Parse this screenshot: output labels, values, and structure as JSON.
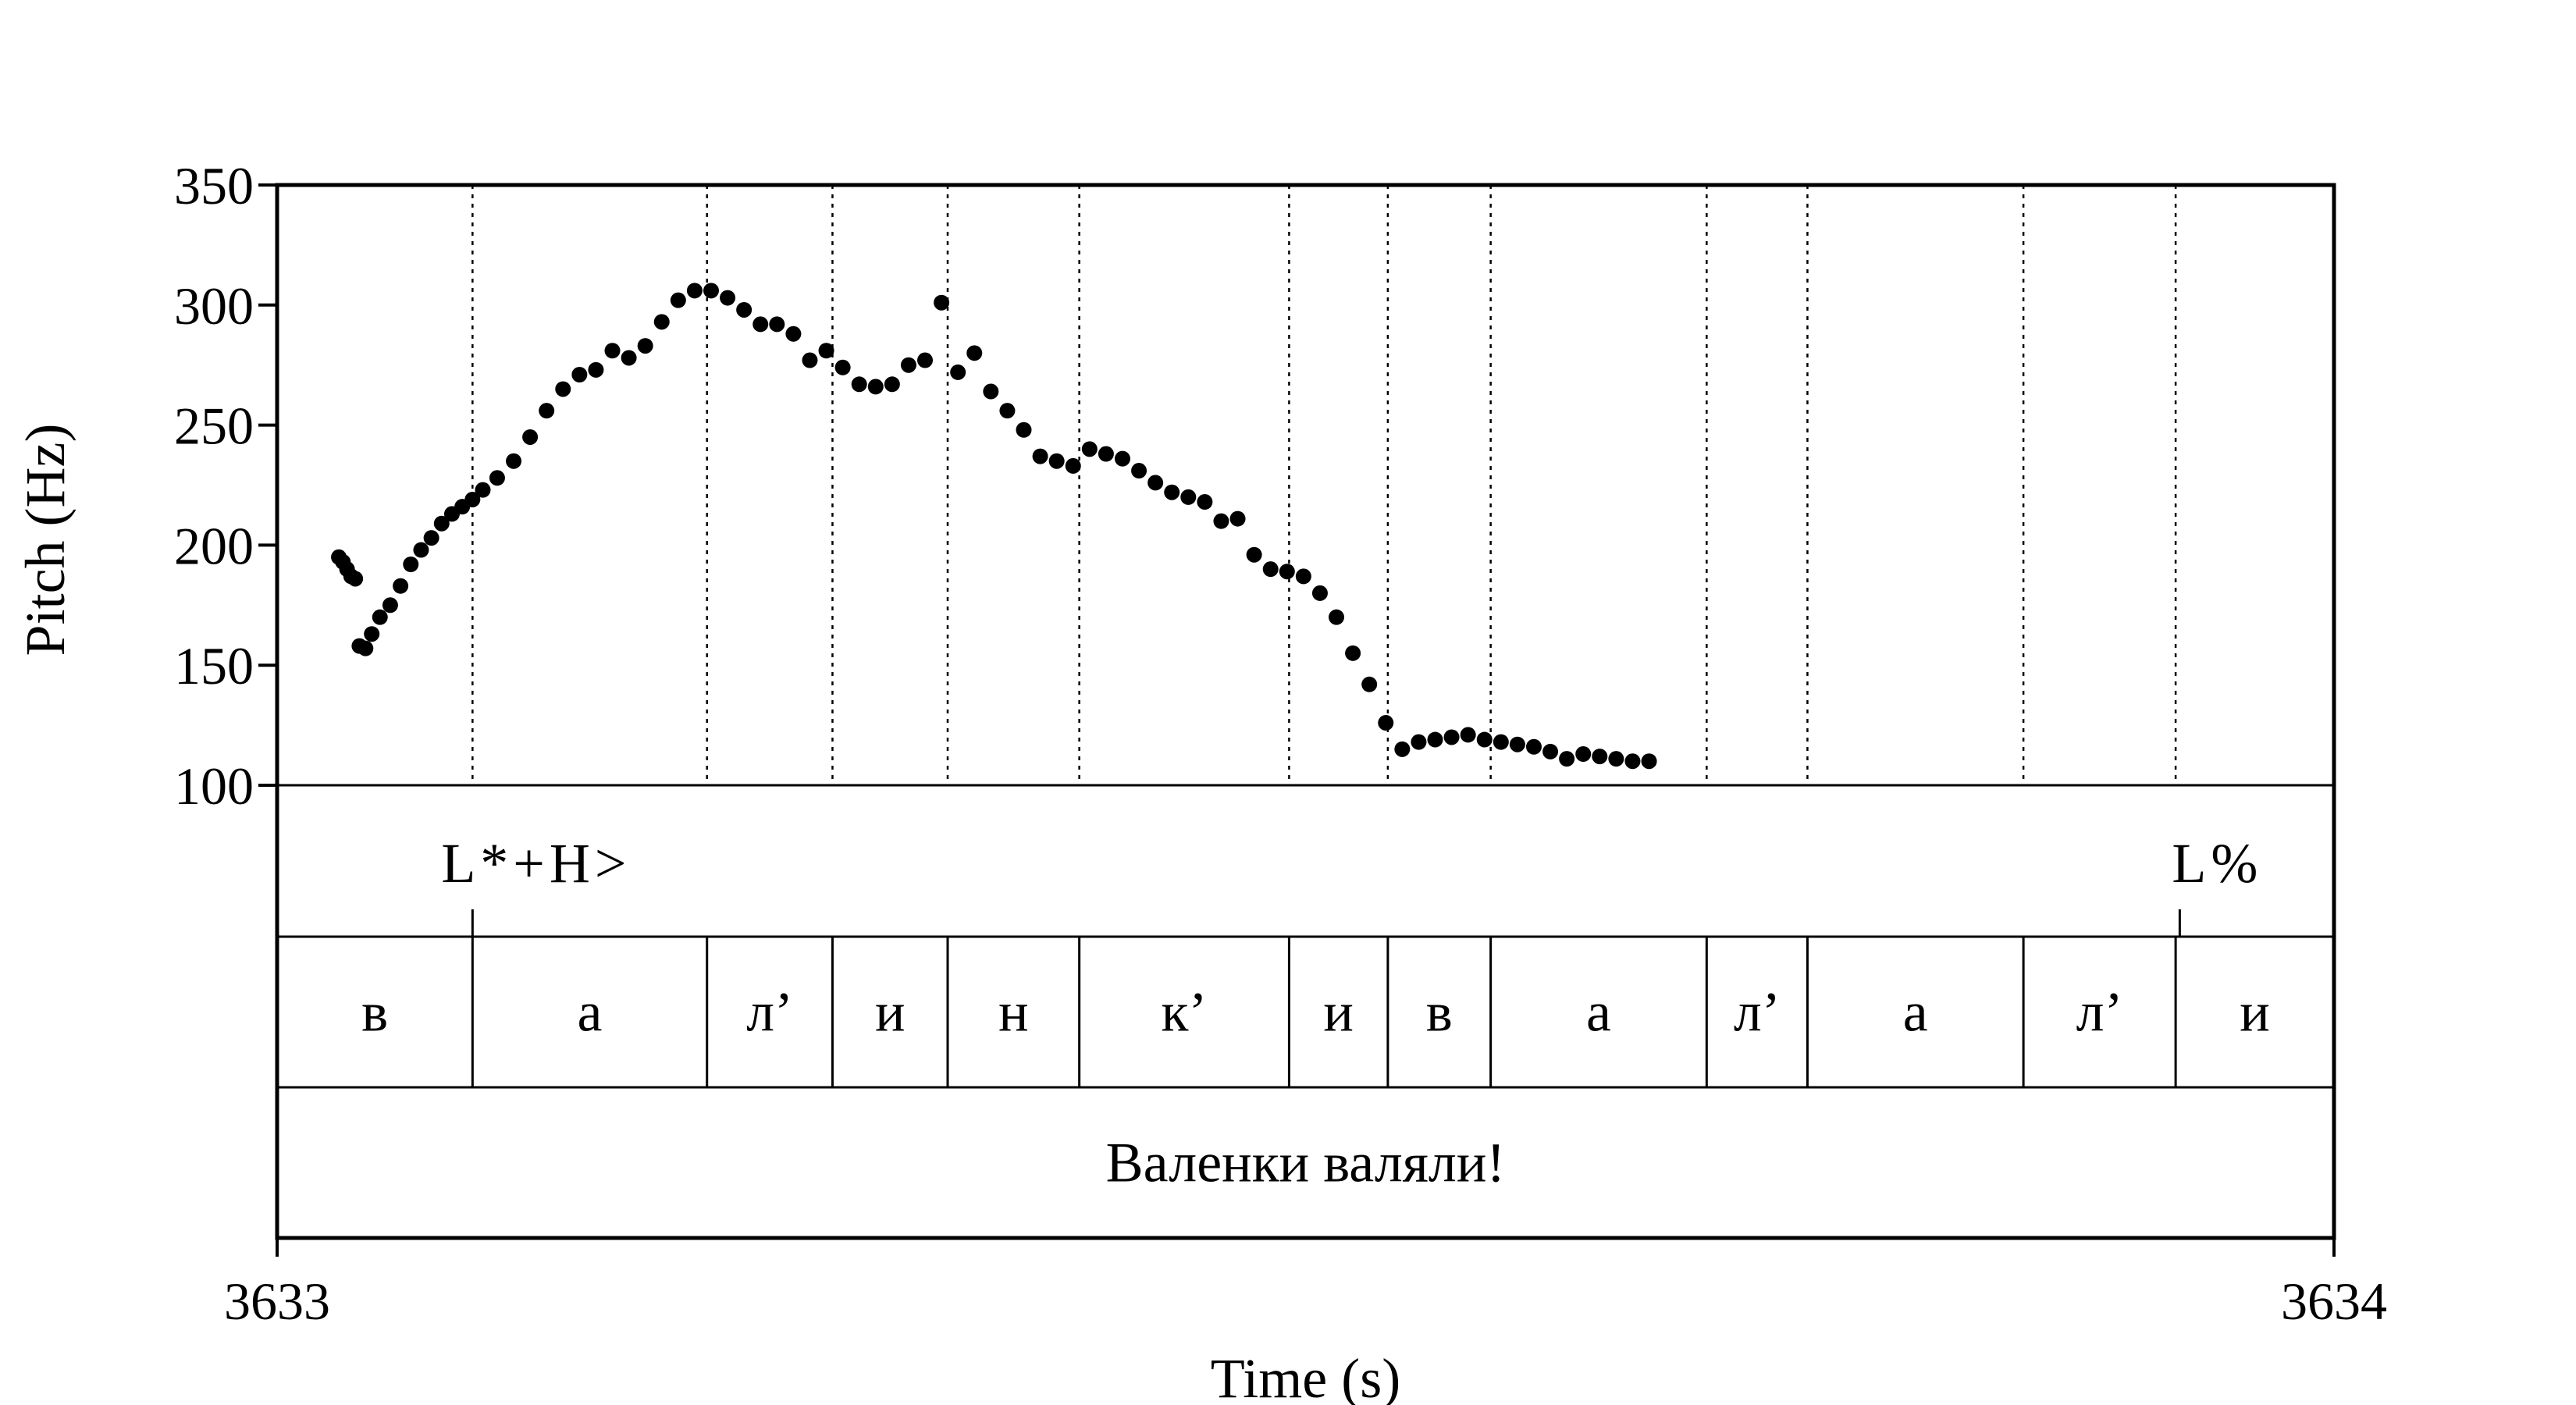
{
  "chart_data": {
    "type": "scatter",
    "xlabel": "Time (s)",
    "ylabel": "Pitch (Hz)",
    "xlim": [
      3633,
      3634
    ],
    "ylim": [
      100,
      350
    ],
    "x_ticks": [
      "3633",
      "3634"
    ],
    "y_ticks": [
      "100",
      "150",
      "200",
      "250",
      "300",
      "350"
    ],
    "grid": false,
    "series": [
      {
        "x": [
          3633.03,
          3633.032,
          3633.034,
          3633.036,
          3633.038,
          3633.04,
          3633.043,
          3633.046,
          3633.05,
          3633.055,
          3633.06,
          3633.065,
          3633.07,
          3633.075,
          3633.08,
          3633.085,
          3633.09,
          3633.095,
          3633.1,
          3633.107,
          3633.115,
          3633.123,
          3633.131,
          3633.139,
          3633.147,
          3633.155,
          3633.163,
          3633.171,
          3633.179,
          3633.187,
          3633.195,
          3633.203,
          3633.211,
          3633.219,
          3633.227,
          3633.235,
          3633.243,
          3633.251,
          3633.259,
          3633.267,
          3633.275,
          3633.283,
          3633.291,
          3633.299,
          3633.307,
          3633.315,
          3633.323,
          3633.331,
          3633.339,
          3633.347,
          3633.355,
          3633.363,
          3633.371,
          3633.379,
          3633.387,
          3633.395,
          3633.403,
          3633.411,
          3633.419,
          3633.427,
          3633.435,
          3633.443,
          3633.451,
          3633.459,
          3633.467,
          3633.475,
          3633.483,
          3633.491,
          3633.499,
          3633.507,
          3633.515,
          3633.523,
          3633.531,
          3633.539,
          3633.547,
          3633.555,
          3633.563,
          3633.571,
          3633.579,
          3633.587,
          3633.595,
          3633.603,
          3633.611,
          3633.619,
          3633.627,
          3633.635,
          3633.643,
          3633.651,
          3633.659,
          3633.667,
          3633.675,
          3633.683,
          3633.691,
          3633.699,
          3633.707,
          3633.715,
          3633.723,
          3633.731,
          3633.739,
          3633.747,
          3633.755,
          3633.763,
          3633.771,
          3633.779,
          3633.787,
          3633.795,
          3633.803,
          3633.811,
          3633.819,
          3633.827,
          3633.835,
          3633.843,
          3633.851,
          3633.859,
          3633.867,
          3633.875,
          3633.883,
          3633.891,
          3633.899,
          3633.907,
          3633.915,
          3633.923,
          3633.931,
          3633.939,
          3633.947,
          3633.955,
          3633.963,
          3633.971,
          3633.979,
          3633.987,
          3633.995,
          3634.0
        ],
        "y": [
          195,
          193,
          190,
          187,
          186,
          158,
          157,
          163,
          170,
          175,
          183,
          192,
          198,
          203,
          209,
          213,
          216,
          219,
          223,
          228,
          235,
          245,
          256,
          265,
          271,
          273,
          281,
          278,
          283,
          293,
          302,
          306,
          306,
          303,
          298,
          292,
          292,
          288,
          277,
          281,
          274,
          267,
          266,
          267,
          275,
          277,
          301,
          272,
          280,
          264,
          256,
          248,
          237,
          235,
          233,
          240,
          238,
          236,
          231,
          226,
          222,
          220,
          218,
          210,
          211,
          196,
          190,
          189,
          187,
          180,
          170,
          155,
          142,
          126,
          115,
          118,
          119,
          120,
          121,
          119,
          118,
          117,
          116,
          114,
          111,
          113,
          112,
          111,
          110,
          110,
          null,
          null,
          null,
          null,
          null,
          null,
          null,
          null,
          null,
          null,
          null,
          null,
          null,
          null,
          null,
          null,
          null,
          null,
          null,
          null,
          null,
          null,
          null,
          null,
          null,
          null,
          null,
          null,
          null,
          null,
          null,
          null,
          null,
          null,
          null,
          null,
          null,
          null,
          null,
          null,
          null,
          null
        ]
      }
    ]
  },
  "tiers": {
    "tones": [
      {
        "label": "L*+H>",
        "time": 3633.095
      },
      {
        "label": "L%",
        "time": 3633.925
      }
    ],
    "segments": [
      {
        "label": "в",
        "start": 3633.0,
        "end": 3633.095
      },
      {
        "label": "а",
        "start": 3633.095,
        "end": 3633.209
      },
      {
        "label": "л’",
        "start": 3633.209,
        "end": 3633.27
      },
      {
        "label": "и",
        "start": 3633.27,
        "end": 3633.326
      },
      {
        "label": "н",
        "start": 3633.326,
        "end": 3633.39
      },
      {
        "label": "к’",
        "start": 3633.39,
        "end": 3633.492
      },
      {
        "label": "и",
        "start": 3633.492,
        "end": 3633.54
      },
      {
        "label": "в",
        "start": 3633.54,
        "end": 3633.59
      },
      {
        "label": "а",
        "start": 3633.59,
        "end": 3633.695
      },
      {
        "label": "л’",
        "start": 3633.695,
        "end": 3633.744
      },
      {
        "label": "а",
        "start": 3633.744,
        "end": 3633.849
      },
      {
        "label": "л’",
        "start": 3633.849,
        "end": 3633.923
      },
      {
        "label": "и",
        "start": 3633.923,
        "end": 3634.0
      }
    ],
    "phrase": "Валенки валяли!"
  }
}
